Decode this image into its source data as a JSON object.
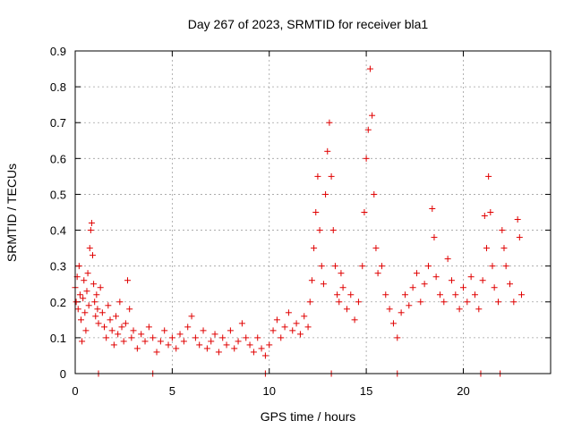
{
  "chart_data": {
    "type": "scatter",
    "title": "Day 267 of 2023, SRMTID for receiver bla1",
    "xlabel": "GPS time / hours",
    "ylabel": "SRMTID / TECUs",
    "xlim": [
      0,
      24.5
    ],
    "ylim": [
      0,
      0.9
    ],
    "x_ticks": [
      0,
      5,
      10,
      15,
      20
    ],
    "y_ticks": [
      0,
      0.1,
      0.2,
      0.3,
      0.4,
      0.5,
      0.6,
      0.7,
      0.8,
      0.9
    ],
    "x_tick_labels": [
      "0",
      "5",
      "10",
      "15",
      "20"
    ],
    "y_tick_labels": [
      "0",
      "0.1",
      "0.2",
      "0.3",
      "0.4",
      "0.5",
      "0.6",
      "0.7",
      "0.8",
      "0.9"
    ],
    "grid": true,
    "marker": "+",
    "color": "#e00000",
    "series": [
      {
        "name": "SRMTID",
        "points": [
          [
            0.0,
            0.24
          ],
          [
            0.05,
            0.2
          ],
          [
            0.1,
            0.27
          ],
          [
            0.15,
            0.18
          ],
          [
            0.2,
            0.3
          ],
          [
            0.25,
            0.22
          ],
          [
            0.3,
            0.15
          ],
          [
            0.35,
            0.09
          ],
          [
            0.4,
            0.21
          ],
          [
            0.45,
            0.26
          ],
          [
            0.5,
            0.17
          ],
          [
            0.55,
            0.12
          ],
          [
            0.6,
            0.23
          ],
          [
            0.65,
            0.28
          ],
          [
            0.7,
            0.19
          ],
          [
            0.75,
            0.35
          ],
          [
            0.8,
            0.4
          ],
          [
            0.85,
            0.42
          ],
          [
            0.9,
            0.33
          ],
          [
            0.95,
            0.25
          ],
          [
            1.0,
            0.2
          ],
          [
            1.05,
            0.16
          ],
          [
            1.1,
            0.22
          ],
          [
            1.15,
            0.18
          ],
          [
            1.2,
            0.14
          ],
          [
            1.3,
            0.24
          ],
          [
            1.4,
            0.17
          ],
          [
            1.5,
            0.13
          ],
          [
            1.6,
            0.1
          ],
          [
            1.7,
            0.19
          ],
          [
            1.8,
            0.15
          ],
          [
            1.9,
            0.12
          ],
          [
            2.0,
            0.08
          ],
          [
            2.1,
            0.16
          ],
          [
            2.2,
            0.11
          ],
          [
            2.3,
            0.2
          ],
          [
            2.4,
            0.13
          ],
          [
            2.5,
            0.09
          ],
          [
            2.6,
            0.14
          ],
          [
            2.7,
            0.26
          ],
          [
            2.8,
            0.18
          ],
          [
            2.9,
            0.1
          ],
          [
            3.0,
            0.12
          ],
          [
            3.2,
            0.07
          ],
          [
            3.4,
            0.11
          ],
          [
            3.6,
            0.09
          ],
          [
            3.8,
            0.13
          ],
          [
            4.0,
            0.1
          ],
          [
            4.2,
            0.06
          ],
          [
            4.4,
            0.09
          ],
          [
            4.6,
            0.12
          ],
          [
            4.8,
            0.08
          ],
          [
            5.0,
            0.1
          ],
          [
            5.2,
            0.07
          ],
          [
            5.4,
            0.11
          ],
          [
            5.6,
            0.09
          ],
          [
            5.8,
            0.13
          ],
          [
            6.0,
            0.16
          ],
          [
            6.2,
            0.1
          ],
          [
            6.4,
            0.08
          ],
          [
            6.6,
            0.12
          ],
          [
            6.8,
            0.07
          ],
          [
            7.0,
            0.09
          ],
          [
            7.2,
            0.11
          ],
          [
            7.4,
            0.06
          ],
          [
            7.6,
            0.1
          ],
          [
            7.8,
            0.08
          ],
          [
            8.0,
            0.12
          ],
          [
            8.2,
            0.07
          ],
          [
            8.4,
            0.09
          ],
          [
            8.6,
            0.14
          ],
          [
            8.8,
            0.1
          ],
          [
            9.0,
            0.08
          ],
          [
            9.2,
            0.06
          ],
          [
            9.4,
            0.1
          ],
          [
            9.6,
            0.07
          ],
          [
            9.8,
            0.05
          ],
          [
            10.0,
            0.08
          ],
          [
            10.2,
            0.12
          ],
          [
            10.4,
            0.15
          ],
          [
            10.6,
            0.1
          ],
          [
            10.8,
            0.13
          ],
          [
            11.0,
            0.17
          ],
          [
            11.2,
            0.12
          ],
          [
            11.4,
            0.14
          ],
          [
            11.6,
            0.11
          ],
          [
            11.8,
            0.16
          ],
          [
            12.0,
            0.13
          ],
          [
            12.1,
            0.2
          ],
          [
            12.2,
            0.26
          ],
          [
            12.3,
            0.35
          ],
          [
            12.4,
            0.45
          ],
          [
            12.5,
            0.55
          ],
          [
            12.6,
            0.4
          ],
          [
            12.7,
            0.3
          ],
          [
            12.8,
            0.25
          ],
          [
            12.9,
            0.5
          ],
          [
            13.0,
            0.62
          ],
          [
            13.1,
            0.7
          ],
          [
            13.2,
            0.55
          ],
          [
            13.3,
            0.4
          ],
          [
            13.4,
            0.3
          ],
          [
            13.5,
            0.22
          ],
          [
            13.6,
            0.2
          ],
          [
            13.7,
            0.28
          ],
          [
            13.8,
            0.24
          ],
          [
            14.0,
            0.18
          ],
          [
            14.2,
            0.22
          ],
          [
            14.4,
            0.15
          ],
          [
            14.6,
            0.2
          ],
          [
            14.8,
            0.3
          ],
          [
            14.9,
            0.45
          ],
          [
            15.0,
            0.6
          ],
          [
            15.1,
            0.68
          ],
          [
            15.2,
            0.85
          ],
          [
            15.3,
            0.72
          ],
          [
            15.4,
            0.5
          ],
          [
            15.5,
            0.35
          ],
          [
            15.6,
            0.28
          ],
          [
            15.8,
            0.3
          ],
          [
            16.0,
            0.22
          ],
          [
            16.2,
            0.18
          ],
          [
            16.4,
            0.14
          ],
          [
            16.6,
            0.1
          ],
          [
            16.8,
            0.17
          ],
          [
            17.0,
            0.22
          ],
          [
            17.2,
            0.19
          ],
          [
            17.4,
            0.24
          ],
          [
            17.6,
            0.28
          ],
          [
            17.8,
            0.2
          ],
          [
            18.0,
            0.25
          ],
          [
            18.2,
            0.3
          ],
          [
            18.4,
            0.46
          ],
          [
            18.5,
            0.38
          ],
          [
            18.6,
            0.27
          ],
          [
            18.8,
            0.22
          ],
          [
            19.0,
            0.2
          ],
          [
            19.2,
            0.32
          ],
          [
            19.4,
            0.26
          ],
          [
            19.6,
            0.22
          ],
          [
            19.8,
            0.18
          ],
          [
            20.0,
            0.24
          ],
          [
            20.2,
            0.2
          ],
          [
            20.4,
            0.27
          ],
          [
            20.6,
            0.22
          ],
          [
            20.8,
            0.18
          ],
          [
            21.0,
            0.26
          ],
          [
            21.1,
            0.44
          ],
          [
            21.2,
            0.35
          ],
          [
            21.3,
            0.55
          ],
          [
            21.4,
            0.45
          ],
          [
            21.5,
            0.3
          ],
          [
            21.6,
            0.24
          ],
          [
            21.8,
            0.2
          ],
          [
            22.0,
            0.4
          ],
          [
            22.1,
            0.35
          ],
          [
            22.2,
            0.3
          ],
          [
            22.4,
            0.25
          ],
          [
            22.6,
            0.2
          ],
          [
            22.8,
            0.43
          ],
          [
            22.9,
            0.38
          ],
          [
            23.0,
            0.22
          ]
        ]
      }
    ],
    "zero_markers_x": [
      1.2,
      4.0,
      9.8,
      13.2,
      16.6,
      20.9,
      21.9
    ]
  }
}
